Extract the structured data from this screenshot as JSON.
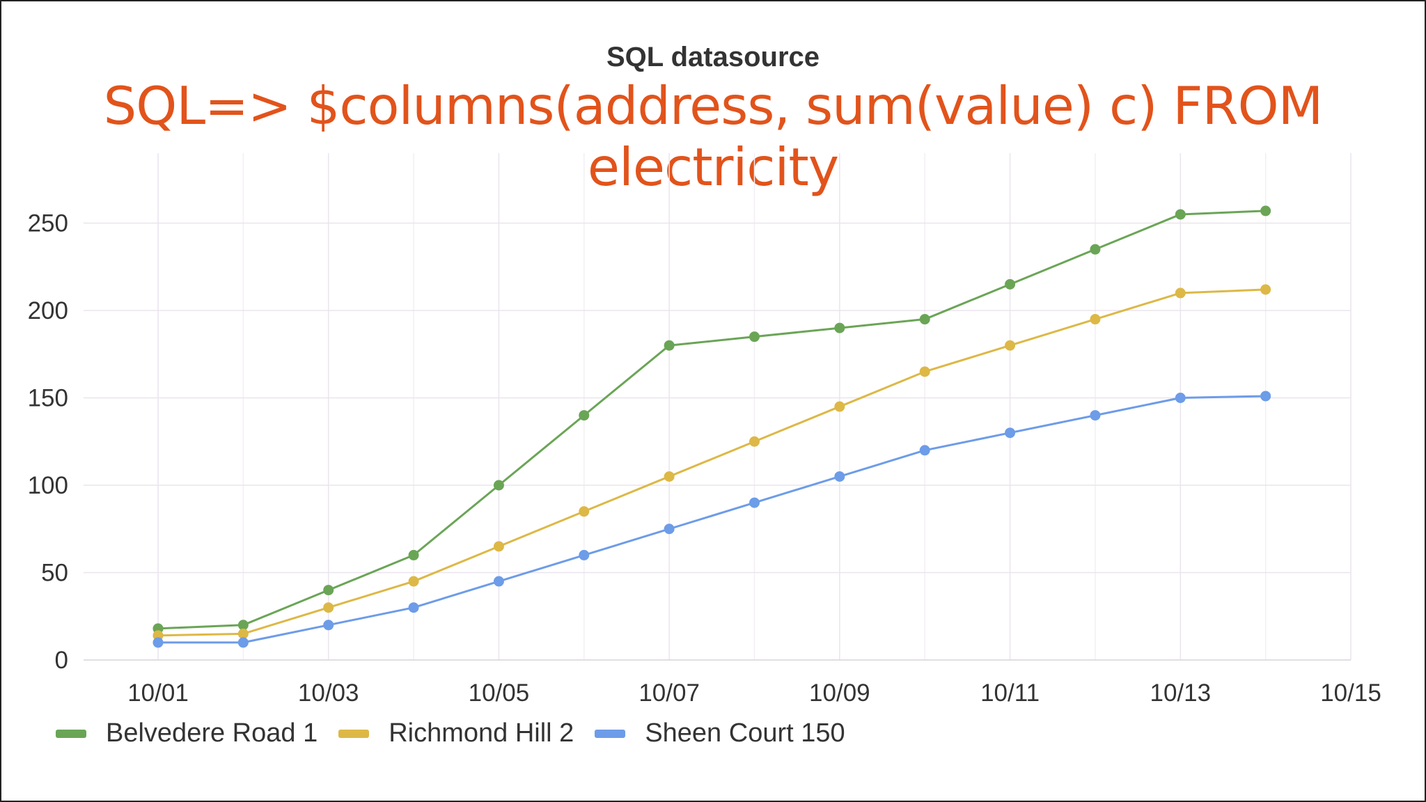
{
  "chart_data": {
    "type": "line",
    "title": "SQL datasource",
    "annotation": "SQL=> $columns(address, sum(value) c) FROM electricity",
    "xlabel": "",
    "ylabel": "",
    "x_ticks": [
      "10/01",
      "10/03",
      "10/05",
      "10/07",
      "10/09",
      "10/11",
      "10/13",
      "10/15"
    ],
    "y_ticks": [
      0,
      50,
      100,
      150,
      200,
      250
    ],
    "xlim": [
      "10/01",
      "10/15"
    ],
    "ylim": [
      0,
      280
    ],
    "x": [
      "10/01",
      "10/02",
      "10/03",
      "10/04",
      "10/05",
      "10/06",
      "10/07",
      "10/08",
      "10/09",
      "10/10",
      "10/11",
      "10/12",
      "10/13",
      "10/14"
    ],
    "grid": true,
    "legend_position": "bottom-left",
    "series": [
      {
        "name": "Belvedere Road 1",
        "color": "#6aa556",
        "values": [
          18,
          20,
          40,
          60,
          100,
          140,
          180,
          185,
          190,
          195,
          215,
          235,
          255,
          257
        ]
      },
      {
        "name": "Richmond Hill 2",
        "color": "#ddb846",
        "values": [
          14,
          15,
          30,
          45,
          65,
          85,
          105,
          125,
          145,
          165,
          180,
          195,
          210,
          212
        ]
      },
      {
        "name": "Sheen Court 150",
        "color": "#6d9ce8",
        "values": [
          10,
          10,
          20,
          30,
          45,
          60,
          75,
          90,
          105,
          120,
          130,
          140,
          150,
          151
        ]
      }
    ]
  }
}
